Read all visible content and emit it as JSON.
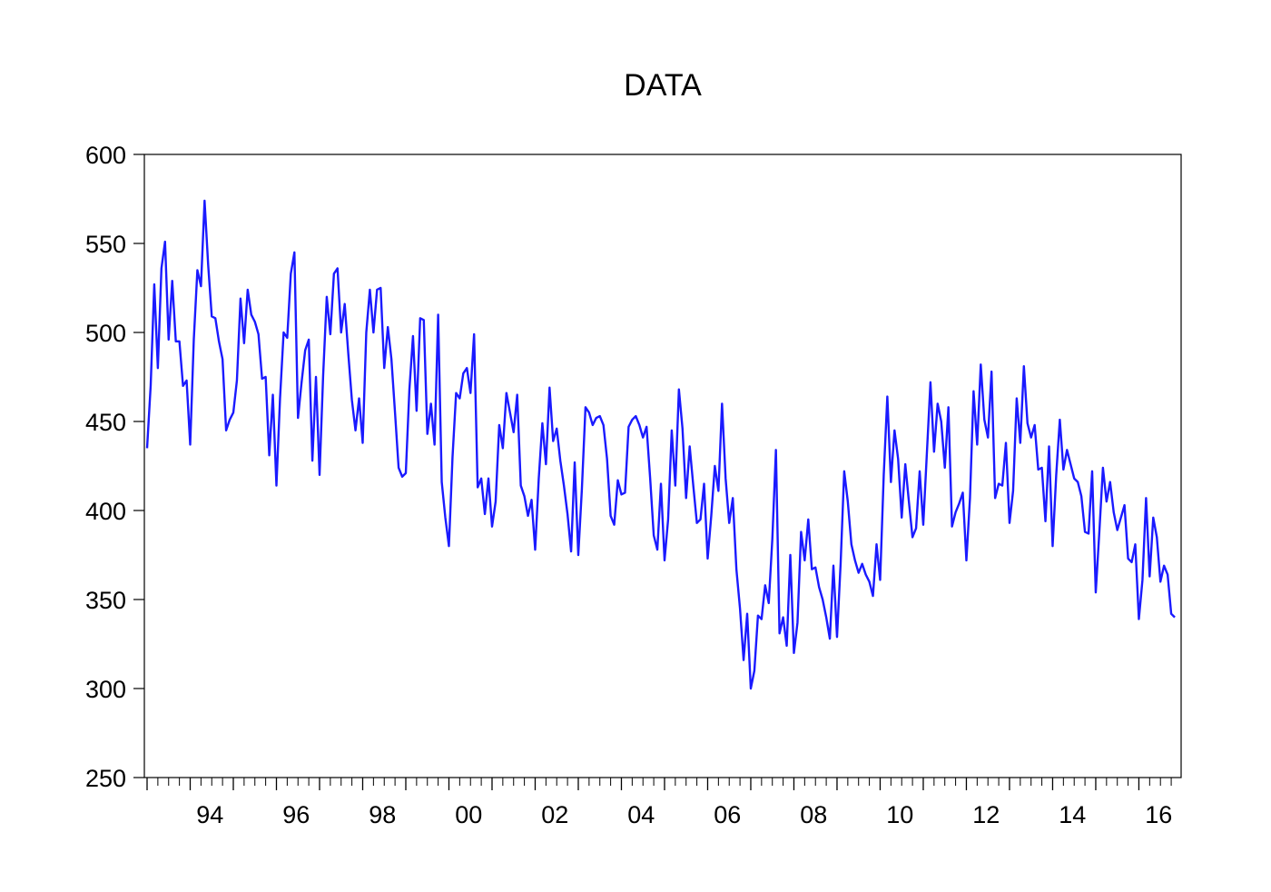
{
  "chart_data": {
    "type": "line",
    "title": "DATA",
    "xlabel": "",
    "ylabel": "",
    "x_start": "1993-01",
    "frequency": "monthly",
    "xlim": [
      "1993-01",
      "2016-12"
    ],
    "ylim": [
      250,
      600
    ],
    "y_ticks": [
      250,
      300,
      350,
      400,
      450,
      500,
      550,
      600
    ],
    "x_tick_labels": [
      "94",
      "96",
      "98",
      "00",
      "02",
      "04",
      "06",
      "08",
      "10",
      "12",
      "14",
      "16"
    ],
    "grid": false,
    "legend": "none",
    "colors": {
      "line": "#1a1aff",
      "axis": "#000000"
    },
    "series": [
      {
        "values": [
          435,
          470,
          527,
          480,
          536,
          551,
          496,
          529,
          495,
          495,
          470,
          473,
          437,
          496,
          535,
          526,
          574,
          538,
          509,
          508,
          495,
          485,
          445,
          451,
          455,
          473,
          519,
          494,
          524,
          510,
          506,
          499,
          474,
          475,
          431,
          465,
          414,
          463,
          500,
          497,
          533,
          545,
          452,
          472,
          490,
          496,
          428,
          475,
          420,
          476,
          520,
          499,
          533,
          536,
          500,
          516,
          488,
          462,
          445,
          463,
          438,
          500,
          524,
          500,
          524,
          525,
          480,
          503,
          485,
          455,
          424,
          419,
          421,
          468,
          498,
          456,
          508,
          507,
          443,
          460,
          437,
          510,
          416,
          396,
          380,
          430,
          466,
          463,
          477,
          480,
          466,
          499,
          413,
          418,
          398,
          418,
          391,
          405,
          448,
          435,
          466,
          455,
          444,
          465,
          414,
          408,
          397,
          406,
          378,
          418,
          449,
          426,
          469,
          439,
          446,
          428,
          414,
          398,
          377,
          427,
          375,
          412,
          458,
          455,
          448,
          452,
          453,
          448,
          429,
          397,
          392,
          417,
          409,
          410,
          447,
          451,
          453,
          448,
          441,
          447,
          418,
          386,
          378,
          415,
          372,
          395,
          445,
          414,
          468,
          446,
          407,
          436,
          414,
          393,
          395,
          415,
          373,
          397,
          425,
          411,
          460,
          418,
          393,
          407,
          367,
          345,
          316,
          342,
          300,
          310,
          341,
          339,
          358,
          348,
          384,
          434,
          331,
          340,
          324,
          375,
          320,
          337,
          388,
          372,
          395,
          367,
          368,
          357,
          350,
          340,
          328,
          369,
          329,
          370,
          422,
          405,
          381,
          372,
          365,
          370,
          364,
          360,
          352,
          381,
          361,
          420,
          464,
          416,
          445,
          429,
          396,
          426,
          405,
          385,
          390,
          422,
          392,
          432,
          472,
          433,
          460,
          450,
          424,
          458,
          391,
          399,
          404,
          410,
          372,
          407,
          467,
          437,
          482,
          451,
          441,
          478,
          407,
          415,
          414,
          438,
          393,
          411,
          463,
          438,
          481,
          449,
          441,
          448,
          423,
          424,
          394,
          436,
          380,
          420,
          451,
          423,
          434,
          426,
          418,
          416,
          408,
          388,
          387,
          422,
          354,
          388,
          424,
          405,
          416,
          399,
          389,
          396,
          403,
          373,
          371,
          381,
          339,
          361,
          407,
          363,
          396,
          385,
          360,
          369,
          364,
          342,
          340
        ]
      }
    ]
  }
}
